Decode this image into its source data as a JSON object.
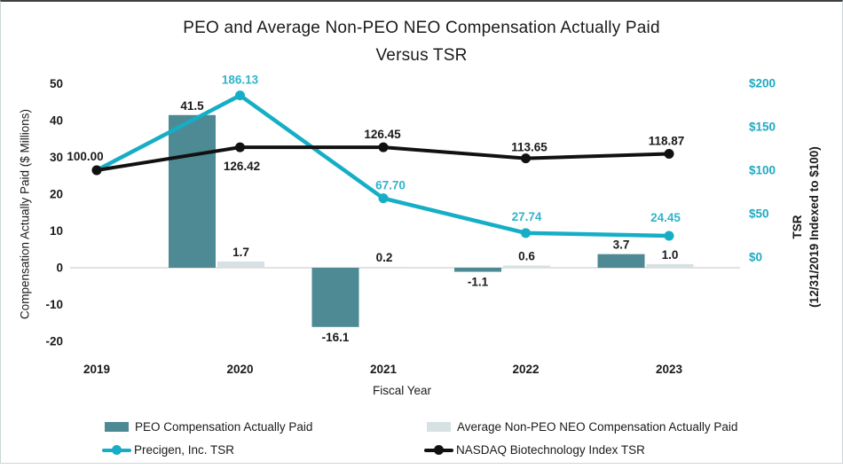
{
  "chart": {
    "title_line1": "PEO and Average Non-PEO NEO Compensation Actually Paid",
    "title_line2": "Versus TSR",
    "left_axis_title": "Compensation Actually Paid ($ Millions)",
    "right_axis_title_line1": "TSR",
    "right_axis_title_line2": "(12/31/2019 Indexed to $100)",
    "x_axis_title": "Fiscal Year",
    "legend": [
      {
        "label": "PEO Compensation Actually Paid",
        "swatch": "bar",
        "color": "#4d8a93"
      },
      {
        "label": "Average Non-PEO NEO Compensation Actually Paid",
        "swatch": "bar",
        "color": "#d7e1e3"
      },
      {
        "label": "Precigen, Inc. TSR",
        "swatch": "line",
        "color": "#16aec6"
      },
      {
        "label": "NASDAQ Biotechnology Index TSR",
        "swatch": "line",
        "color": "#111111"
      }
    ]
  },
  "chart_data": {
    "type": "combo",
    "subtypes": [
      "bar",
      "line"
    ],
    "title": "PEO and Average Non-PEO NEO Compensation Actually Paid Versus TSR",
    "categories": [
      "2019",
      "2020",
      "2021",
      "2022",
      "2023"
    ],
    "x_axis_title": "Fiscal Year",
    "left_axis": {
      "title": "Compensation Actually Paid ($ Millions)",
      "range": [
        -20,
        50
      ],
      "ticks": [
        {
          "label": "50",
          "value": 50
        },
        {
          "label": "40",
          "value": 40
        },
        {
          "label": "30",
          "value": 30
        },
        {
          "label": "20",
          "value": 20
        },
        {
          "label": "10",
          "value": 10
        },
        {
          "label": "0",
          "value": 0
        },
        {
          "label": "-10",
          "value": -10
        },
        {
          "label": "-20",
          "value": -20
        }
      ]
    },
    "right_axis": {
      "title": "TSR (12/31/2019 Indexed to $100)",
      "range": [
        0,
        200
      ],
      "ticks": [
        {
          "label": "$200",
          "value": 200
        },
        {
          "label": "$150",
          "value": 150
        },
        {
          "label": "$100",
          "value": 100
        },
        {
          "label": "$50",
          "value": 50
        },
        {
          "label": "$0",
          "value": 0
        }
      ]
    },
    "grid": "zero-line-only",
    "legend_position": "bottom",
    "series": [
      {
        "name": "PEO Compensation Actually Paid",
        "type": "bar",
        "axis": "left",
        "color": "#4d8a93",
        "values": [
          null,
          41.5,
          -16.1,
          -1.1,
          3.7
        ],
        "point_labels": [
          null,
          "41.5",
          "-16.1",
          "-1.1",
          "3.7"
        ],
        "label_color": "#1a1a1a"
      },
      {
        "name": "Average Non-PEO NEO Compensation Actually Paid",
        "type": "bar",
        "axis": "left",
        "color": "#d7e1e3",
        "values": [
          null,
          1.7,
          0.2,
          0.6,
          1.0
        ],
        "point_labels": [
          null,
          "1.7",
          "0.2",
          "0.6",
          "1.0"
        ],
        "label_color": "#1a1a1a"
      },
      {
        "name": "Precigen, Inc. TSR",
        "type": "line",
        "axis": "right",
        "color": "#16aec6",
        "values": [
          100.0,
          186.13,
          67.7,
          27.74,
          24.45
        ],
        "point_labels": [
          null,
          "186.13",
          "67.70",
          "27.74",
          "24.45"
        ],
        "label_color": "#31b4ca"
      },
      {
        "name": "NASDAQ Biotechnology Index TSR",
        "type": "line",
        "axis": "right",
        "color": "#111111",
        "values": [
          100.0,
          126.42,
          126.45,
          113.65,
          118.87
        ],
        "point_labels": [
          "100.00",
          "126.42",
          "126.45",
          "113.65",
          "118.87"
        ],
        "label_color": "#1a1a1a"
      }
    ],
    "colors": {
      "zero_line": "#d8d8d8",
      "left_tick": "#1a1a1a",
      "right_tick": "#1fa9c1",
      "year_label": "#1a1a1a"
    }
  }
}
